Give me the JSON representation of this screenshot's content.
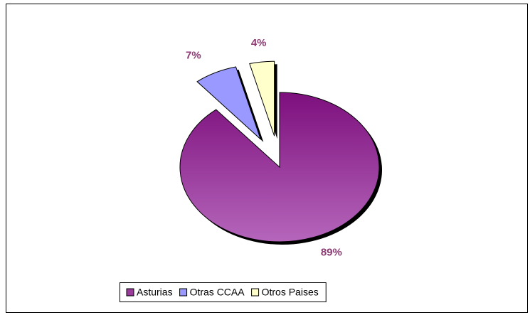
{
  "chart_data": {
    "type": "pie",
    "categories": [
      "Asturias",
      "Otras CCAA",
      "Otros Paises"
    ],
    "values": [
      89,
      7,
      4
    ],
    "value_labels": [
      "89%",
      "7%",
      "4%"
    ],
    "colors": [
      "#9b3b9b",
      "#9999ff",
      "#ffffcc"
    ],
    "legend": "bottom"
  }
}
